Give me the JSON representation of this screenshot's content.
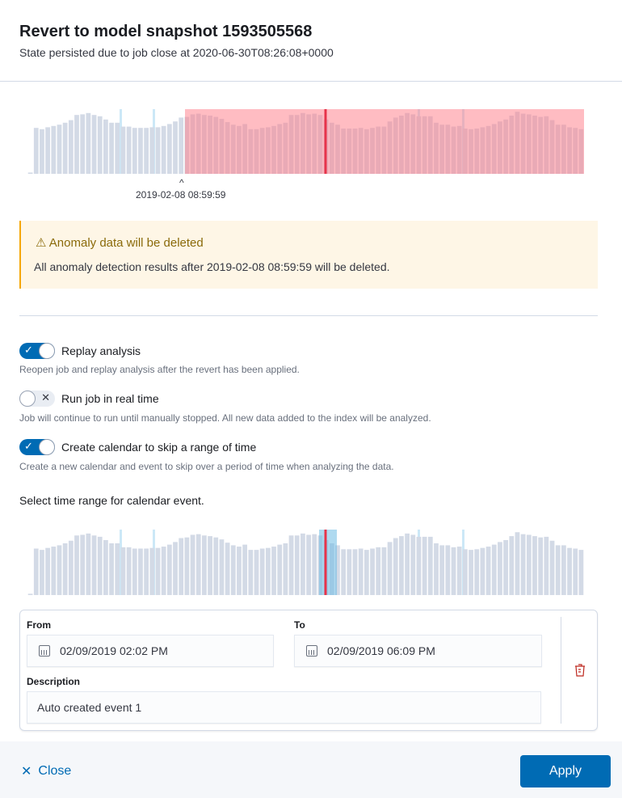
{
  "header": {
    "title": "Revert to model snapshot 1593505568",
    "subtitle": "State persisted due to job close at 2020-06-30T08:26:08+0000"
  },
  "snapshot_chart": {
    "marker_label": "2019-02-08 08:59:59",
    "colors": {
      "bar": "#d3dae6",
      "deleted_overlay": "#ff7a85",
      "snapshot_line": "#e7334a",
      "anomaly": "#cce8f7"
    }
  },
  "bars": [
    2,
    71,
    69,
    72,
    74,
    76,
    79,
    83,
    91,
    92,
    94,
    91,
    89,
    84,
    79,
    79,
    73,
    73,
    71,
    71,
    71,
    72,
    72,
    74,
    77,
    81,
    87,
    88,
    92,
    93,
    91,
    90,
    88,
    85,
    80,
    76,
    74,
    77,
    69,
    69,
    71,
    72,
    74,
    77,
    79,
    91,
    91,
    94,
    92,
    93,
    91,
    84,
    79,
    76,
    70,
    70,
    70,
    71,
    69,
    71,
    73,
    73,
    81,
    87,
    90,
    94,
    92,
    89,
    89,
    89,
    79,
    76,
    76,
    73,
    74,
    70,
    69,
    70,
    72,
    74,
    77,
    81,
    84,
    90,
    96,
    93,
    92,
    90,
    88,
    89,
    83,
    76,
    76,
    72,
    71,
    69
  ],
  "callout": {
    "icon": "warning-icon",
    "title": "Anomaly data will be deleted",
    "body": "All anomaly detection results after 2019-02-08 08:59:59 will be deleted."
  },
  "options": [
    {
      "label": "Replay analysis",
      "help": "Reopen job and replay analysis after the revert has been applied.",
      "checked": true
    },
    {
      "label": "Run job in real time",
      "help": "Job will continue to run until manually stopped. All new data added to the index will be analyzed.",
      "checked": false
    },
    {
      "label": "Create calendar to skip a range of time",
      "help": "Create a new calendar and event to skip over a period of time when analyzing the data.",
      "checked": true
    }
  ],
  "calendar": {
    "prompt": "Select time range for calendar event.",
    "from_label": "From",
    "from_value": "02/09/2019 02:02 PM",
    "to_label": "To",
    "to_value": "02/09/2019 06:09 PM",
    "description_label": "Description",
    "description_value": "Auto created event 1",
    "selection_color": "#6dbbe3"
  },
  "footer": {
    "close_label": "Close",
    "apply_label": "Apply"
  },
  "accent": "#006bb4"
}
